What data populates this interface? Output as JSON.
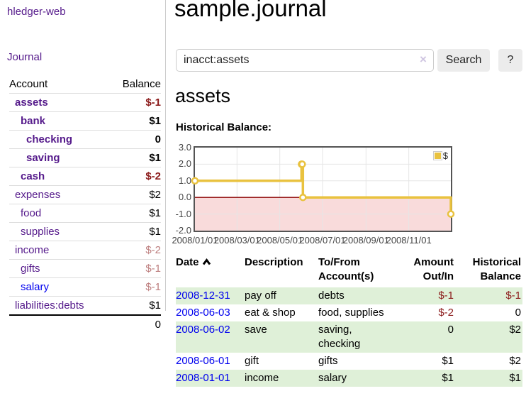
{
  "brand": "hledger-web",
  "sidebar": {
    "journal_link": "Journal",
    "accounts": {
      "headers": [
        "Account",
        "Balance"
      ],
      "rows": [
        {
          "account": "assets",
          "indent": 1,
          "bold": true,
          "balance": "$-1",
          "balance_class": "neg-strong"
        },
        {
          "account": "bank",
          "indent": 2,
          "bold": true,
          "balance": "$1",
          "balance_class": ""
        },
        {
          "account": "checking",
          "indent": 3,
          "bold": true,
          "balance": "0",
          "balance_class": ""
        },
        {
          "account": "saving",
          "indent": 3,
          "bold": true,
          "balance": "$1",
          "balance_class": ""
        },
        {
          "account": "cash",
          "indent": 2,
          "bold": true,
          "balance": "$-2",
          "balance_class": "neg-strong"
        },
        {
          "account": "expenses",
          "indent": 1,
          "bold": false,
          "balance": "$2",
          "balance_class": ""
        },
        {
          "account": "food",
          "indent": 2,
          "bold": false,
          "balance": "$1",
          "balance_class": ""
        },
        {
          "account": "supplies",
          "indent": 2,
          "bold": false,
          "balance": "$1",
          "balance_class": ""
        },
        {
          "account": "income",
          "indent": 1,
          "bold": false,
          "balance": "$-2",
          "balance_class": "neg-muted"
        },
        {
          "account": "gifts",
          "indent": 2,
          "bold": false,
          "balance": "$-1",
          "balance_class": "neg-muted"
        },
        {
          "account": "salary",
          "indent": 2,
          "bold": false,
          "unvisited": true,
          "balance": "$-1",
          "balance_class": "neg-muted"
        },
        {
          "account": "liabilities:debts",
          "indent": 1,
          "bold": false,
          "balance": "$1",
          "balance_class": ""
        }
      ],
      "total": "0"
    }
  },
  "header": {
    "title": "sample.journal"
  },
  "search": {
    "value": "inacct:assets",
    "clear_icon": "×",
    "button_label": "Search",
    "help_label": "?"
  },
  "account_page": {
    "heading": "assets",
    "chart_label": "Historical Balance:"
  },
  "chart_data": {
    "type": "line",
    "style": "step-with-markers",
    "title": "Historical Balance:",
    "x_type": "date",
    "xlim": [
      "2008-01-01",
      "2008-12-31"
    ],
    "ylim": [
      -2,
      3
    ],
    "x_ticks": [
      "2008/01/01",
      "2008/03/01",
      "2008/05/01",
      "2008/07/01",
      "2008/09/01",
      "2008/11/01"
    ],
    "y_ticks": [
      "3.0",
      "2.0",
      "1.0",
      "0.0",
      "-1.0",
      "-2.0"
    ],
    "grid": true,
    "legend_position": "top-right",
    "series": [
      {
        "name": "$",
        "color": "#e9c23f",
        "points": [
          [
            "2008-01-01",
            1
          ],
          [
            "2008-06-01",
            2
          ],
          [
            "2008-06-02",
            2
          ],
          [
            "2008-06-03",
            0
          ],
          [
            "2008-12-31",
            -1
          ]
        ]
      }
    ],
    "negative_region_color": "#f9dbdb",
    "zero_line_color": "#8b0000",
    "grid_color": "#e6e6e6",
    "plot_border_color": "#545454"
  },
  "register": {
    "headers": [
      "Date",
      "Description",
      "To/From Account(s)",
      "Amount Out/In",
      "Historical Balance"
    ],
    "sort": {
      "column": "Date",
      "direction": "ascending"
    },
    "rows": [
      {
        "date": "2008-12-31",
        "description": "pay off",
        "accounts": "debts",
        "amount": "$-1",
        "amount_negative": true,
        "balance": "$-1",
        "balance_negative": true
      },
      {
        "date": "2008-06-03",
        "description": "eat & shop",
        "accounts": "food, supplies",
        "amount": "$-2",
        "amount_negative": true,
        "balance": "0",
        "balance_negative": false
      },
      {
        "date": "2008-06-02",
        "description": "save",
        "accounts": "saving, checking",
        "amount": "0",
        "amount_negative": false,
        "balance": "$2",
        "balance_negative": false
      },
      {
        "date": "2008-06-01",
        "description": "gift",
        "accounts": "gifts",
        "amount": "$1",
        "amount_negative": false,
        "balance": "$2",
        "balance_negative": false
      },
      {
        "date": "2008-01-01",
        "description": "income",
        "accounts": "salary",
        "amount": "$1",
        "amount_negative": false,
        "balance": "$1",
        "balance_negative": false
      }
    ]
  },
  "colors": {
    "link_visited": "#551a8b",
    "link_unvisited": "#0000ee",
    "negative_strong": "#8b1a1a",
    "negative_muted": "#bd7e7e",
    "row_highlight": "#dff0d8",
    "button_bg": "#ececec",
    "divider": "#cccccc"
  }
}
